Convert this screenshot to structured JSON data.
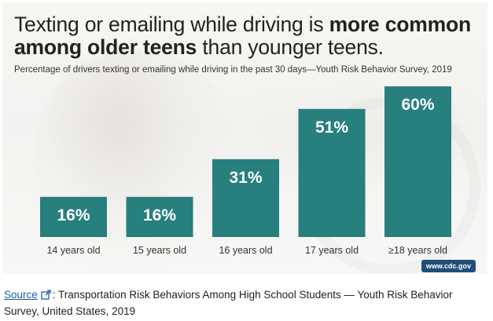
{
  "chart_data": {
    "type": "bar",
    "title_parts": {
      "pre": "Texting or emailing while driving is ",
      "bold": "more common among older teens",
      "post": " than younger teens."
    },
    "subtitle": "Percentage of drivers texting or emailing while driving in the past 30 days—Youth Risk Behavior Survey, 2019",
    "categories": [
      "14 years old",
      "15 years old",
      "16 years old",
      "17 years old",
      "≥18 years old"
    ],
    "values": [
      16,
      16,
      31,
      51,
      60
    ],
    "value_labels": [
      "16%",
      "16%",
      "31%",
      "51%",
      "60%"
    ],
    "ylim": [
      0,
      60
    ],
    "bar_color": "#277f7e",
    "grid": false,
    "legend": "none"
  },
  "badge": "www.cdc.gov",
  "source": {
    "link_label": "Source",
    "text": ": Transportation Risk Behaviors Among High School Students — Youth Risk Behavior Survey, United States, 2019"
  }
}
